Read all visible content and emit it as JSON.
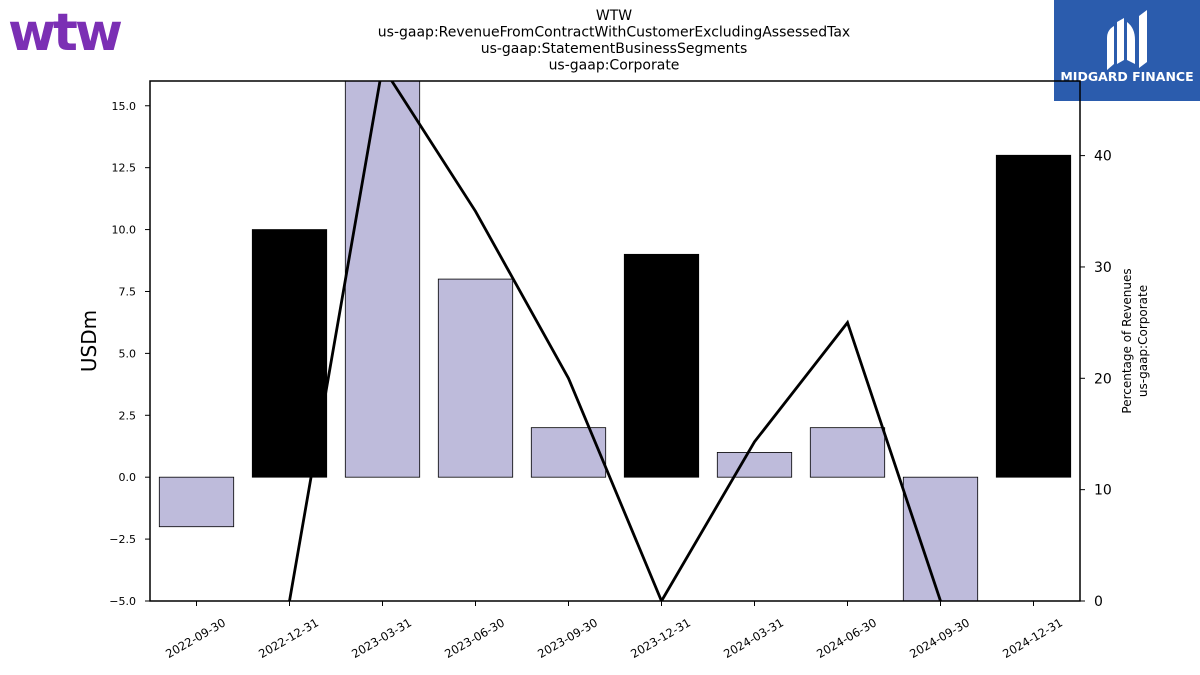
{
  "logos": {
    "left": {
      "text": "wtw",
      "color": "#7b2fb4"
    },
    "right": {
      "text": "MIDGARD FINANCE",
      "bg": "#2b5cad",
      "fg": "#ffffff"
    }
  },
  "chart_data": {
    "type": "bar",
    "title_lines": [
      "WTW",
      "us-gaap:RevenueFromContractWithCustomerExcludingAssessedTax",
      "us-gaap:StatementBusinessSegments",
      "us-gaap:Corporate"
    ],
    "ylabel": "USDm",
    "y2label_lines": [
      "Percentage of Revenues",
      "us-gaap:Corporate"
    ],
    "categories": [
      "2022-09-30",
      "2022-12-31",
      "2023-03-31",
      "2023-06-30",
      "2023-09-30",
      "2023-12-31",
      "2024-03-31",
      "2024-06-30",
      "2024-09-30",
      "2024-12-31"
    ],
    "series": [
      {
        "type": "bar",
        "values": [
          -2,
          10,
          16,
          8,
          2,
          9,
          1,
          2,
          -5,
          13
        ],
        "colors": [
          "#bebbdb",
          "#000000",
          "#bebbdb",
          "#bebbdb",
          "#bebbdb",
          "#000000",
          "#bebbdb",
          "#bebbdb",
          "#bebbdb",
          "#000000"
        ]
      },
      {
        "type": "line",
        "axis": "right",
        "values": [
          null,
          0,
          48,
          35,
          20,
          0,
          14.3,
          25,
          0,
          null
        ]
      }
    ],
    "ylim": [
      -5,
      16
    ],
    "yticks": [
      -5.0,
      -2.5,
      0.0,
      2.5,
      5.0,
      7.5,
      10.0,
      12.5,
      15.0
    ],
    "ytick_labels": [
      "−5.0",
      "−2.5",
      "0.0",
      "2.5",
      "5.0",
      "7.5",
      "10.0",
      "12.5",
      "15.0"
    ],
    "y2lim": [
      0,
      46.7
    ],
    "y2ticks": [
      0,
      10,
      20,
      30,
      40
    ],
    "grid": false,
    "colors": {
      "bar_light": "#bebbdb",
      "bar_dark": "#000000",
      "line": "#000000"
    }
  }
}
